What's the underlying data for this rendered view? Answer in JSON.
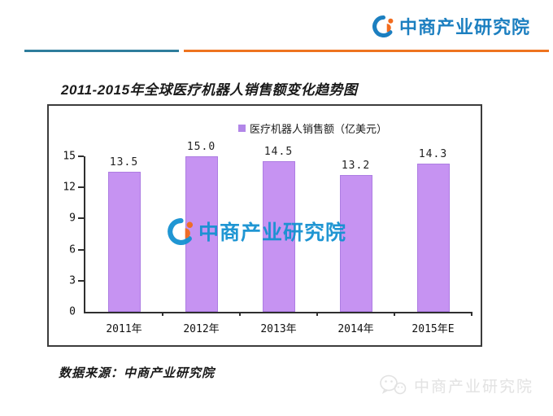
{
  "header": {
    "logo_text": "中商产业研究院"
  },
  "title": "2011-2015年全球医疗机器人销售额变化趋势图",
  "chart_data": {
    "type": "bar",
    "title": "2011-2015年全球医疗机器人销售额变化趋势图",
    "legend": "医疗机器人销售额（亿美元）",
    "legend_position": "top-center",
    "categories": [
      "2011年",
      "2012年",
      "2013年",
      "2014年",
      "2015年E"
    ],
    "values": [
      13.5,
      15.0,
      14.5,
      13.2,
      14.3
    ],
    "value_labels": [
      "13.5",
      "15.0",
      "14.5",
      "13.2",
      "14.3"
    ],
    "xlabel": "",
    "ylabel": "",
    "ylim": [
      0,
      15
    ],
    "y_ticks": [
      0,
      3,
      6,
      9,
      12,
      15
    ],
    "grid": false,
    "bar_color": "#C693F2",
    "bar_border_color": "#AD7DE2",
    "legend_swatch_color": "#B286E8"
  },
  "chart_watermark": {
    "text": "中商产业研究院"
  },
  "source_note": "数据来源：中商产业研究院",
  "footer_watermark": {
    "text": "中商产业研究院"
  },
  "colors": {
    "brand_blue": "#1C7FC0",
    "brand_orange": "#F26B1D",
    "watermark_blue": "#1591D1",
    "divider_teal": "#2E7D9C",
    "divider_orange": "#EE7420",
    "axis": "#2f2f2f",
    "footer_watermark_gray": "#E2E2E2"
  }
}
